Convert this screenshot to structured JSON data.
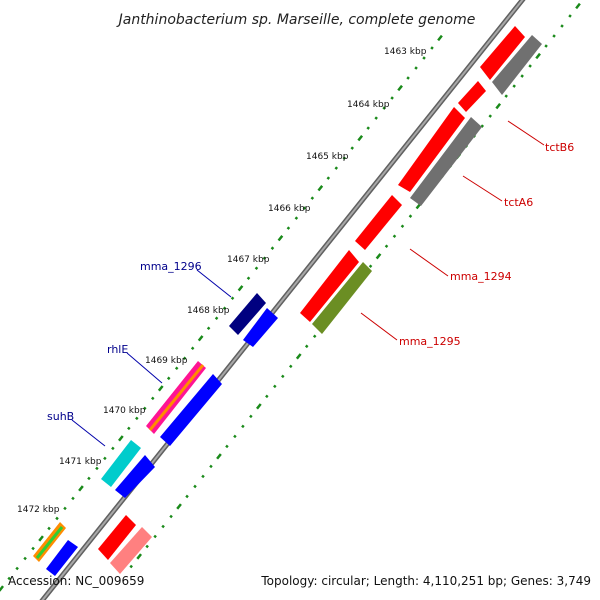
{
  "title": "Janthinobacterium sp. Marseille, complete genome",
  "accession": "Accession: NC_009659",
  "topology": "Topology: circular; Length: 4,110,251 bp; Genes: 3,749",
  "ticks": [
    "1463 kbp",
    "1464 kbp",
    "1465 kbp",
    "1466 kbp",
    "1467 kbp",
    "1468 kbp",
    "1469 kbp",
    "1470 kbp",
    "1471 kbp",
    "1472 kbp"
  ],
  "gene_labels": {
    "mma_1296": "mma_1296",
    "rhlE": "rhlE",
    "suhB": "suhB",
    "tctB6": "tctB6",
    "tctA6": "tctA6",
    "mma_1294": "mma_1294",
    "mma_1295": "mma_1295"
  },
  "colors": {
    "backbone": "#7a7a7a",
    "tick": "#1a8a1a",
    "forward_label": "#00008b",
    "reverse_label": "#cc0000",
    "red_gene": "#ff0000",
    "gray_gene": "#707070",
    "olive_gene": "#6b8e23",
    "navy_gene": "#000080",
    "blue_gene": "#0000ff",
    "cyan_gene": "#00cccc",
    "pink_gene": "#ff8080",
    "magenta_gene": "#ff1493",
    "orange_gene": "#ff8c00",
    "green_gene": "#32cd32"
  }
}
